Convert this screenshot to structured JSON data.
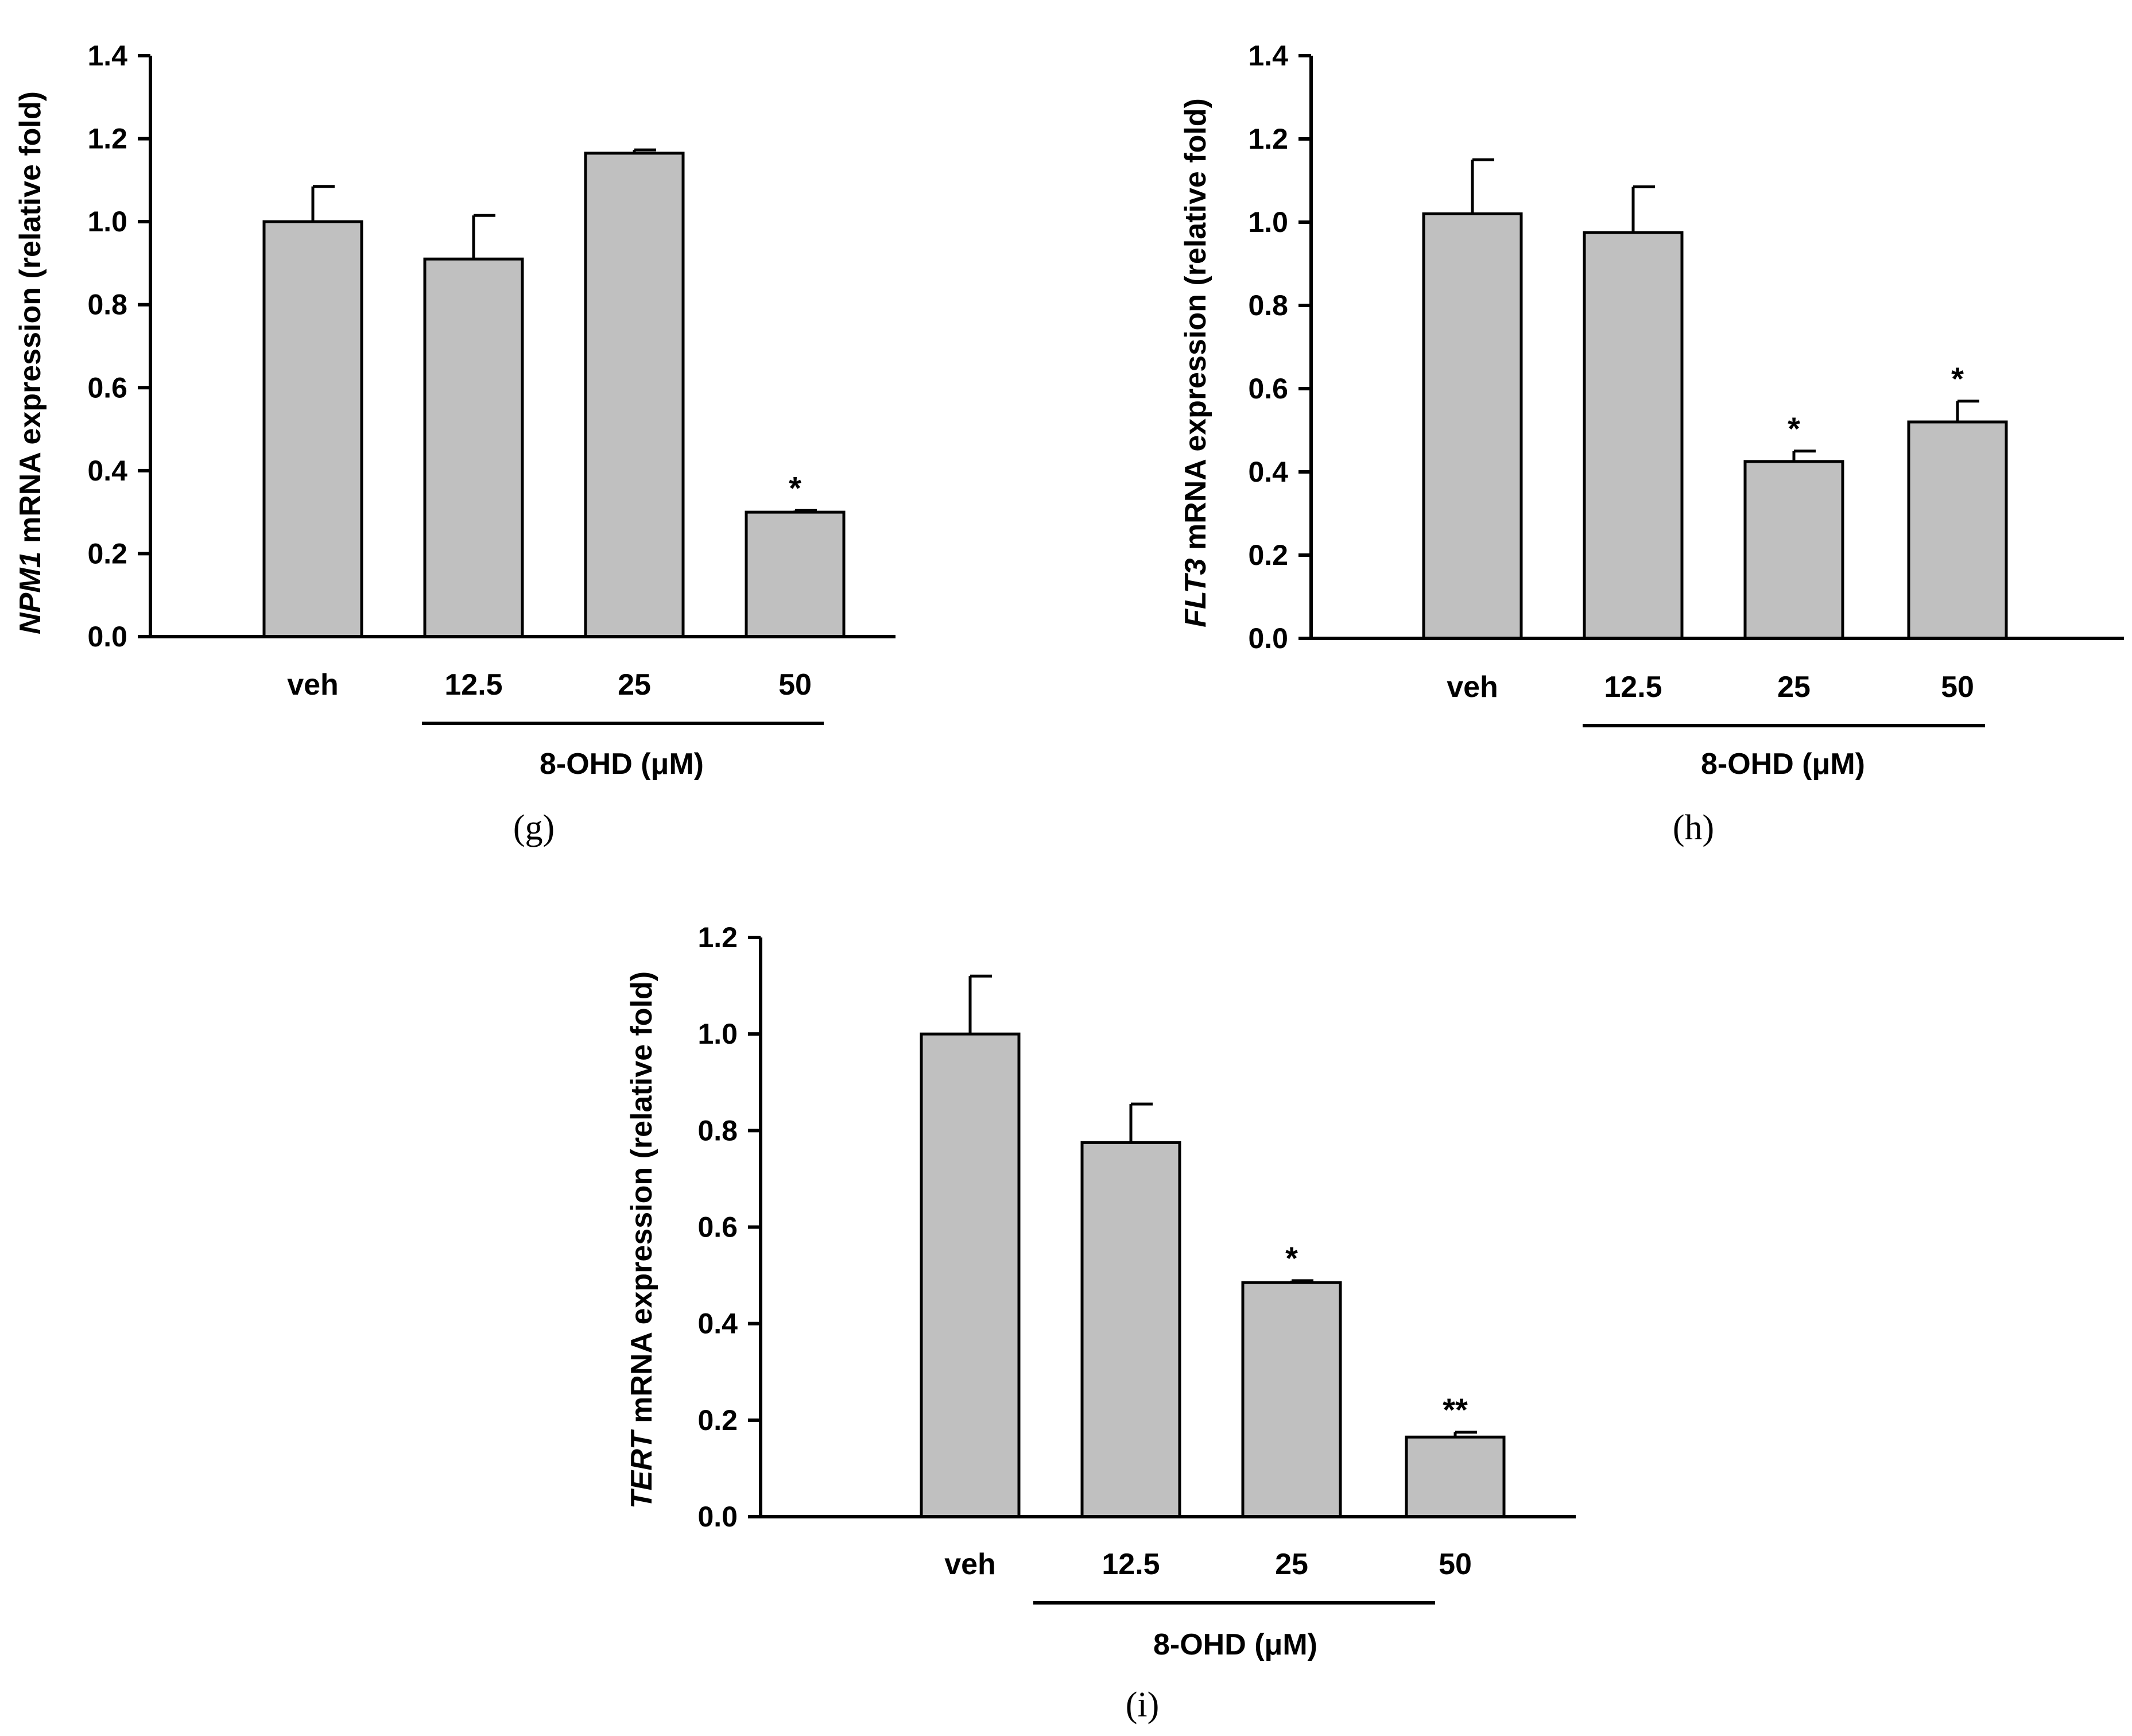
{
  "figure": {
    "panels": [
      {
        "id": "g",
        "panel_label": "(g)",
        "ylabel_gene": "NPM1",
        "ylabel_rest": " mRNA expression (relative fold)",
        "group_label": "8-OHD (μM)",
        "chart_data": {
          "type": "bar",
          "categories": [
            "veh",
            "12.5",
            "25",
            "50"
          ],
          "values": [
            1.0,
            0.91,
            1.165,
            0.3
          ],
          "errors": [
            0.085,
            0.105,
            0.008,
            0.004
          ],
          "significance": [
            "",
            "",
            "",
            "*"
          ],
          "ylabel": "NPM1 mRNA expression (relative fold)",
          "xlabel": "8-OHD (μM)",
          "ylim": [
            0,
            1.4
          ],
          "yticks": [
            0.0,
            0.2,
            0.4,
            0.6,
            0.8,
            1.0,
            1.2,
            1.4
          ],
          "ytick_labels": [
            "0.0",
            "0.2",
            "0.4",
            "0.6",
            "0.8",
            "1.0",
            "1.2",
            "1.4"
          ],
          "bar_color": "#c0c0c0"
        }
      },
      {
        "id": "h",
        "panel_label": "(h)",
        "ylabel_gene": "FLT3",
        "ylabel_rest": " mRNA expression (relative fold)",
        "group_label": "8-OHD (μM)",
        "chart_data": {
          "type": "bar",
          "categories": [
            "veh",
            "12.5",
            "25",
            "50"
          ],
          "values": [
            1.02,
            0.975,
            0.425,
            0.52
          ],
          "errors": [
            0.13,
            0.11,
            0.025,
            0.05
          ],
          "significance": [
            "",
            "",
            "*",
            "*"
          ],
          "ylabel": "FLT3 mRNA expression (relative fold)",
          "xlabel": "8-OHD (μM)",
          "ylim": [
            0,
            1.4
          ],
          "yticks": [
            0.0,
            0.2,
            0.4,
            0.6,
            0.8,
            1.0,
            1.2,
            1.4
          ],
          "ytick_labels": [
            "0.0",
            "0.2",
            "0.4",
            "0.6",
            "0.8",
            "1.0",
            "1.2",
            "1.4"
          ],
          "bar_color": "#c0c0c0"
        }
      },
      {
        "id": "i",
        "panel_label": "(i)",
        "ylabel_gene": "TERT",
        "ylabel_rest": " mRNA expression (relative fold)",
        "group_label": "8-OHD (μM)",
        "chart_data": {
          "type": "bar",
          "categories": [
            "veh",
            "12.5",
            "25",
            "50"
          ],
          "values": [
            1.0,
            0.775,
            0.485,
            0.165
          ],
          "errors": [
            0.12,
            0.08,
            0.004,
            0.01
          ],
          "significance": [
            "",
            "",
            "*",
            "**"
          ],
          "ylabel": "TERT mRNA expression (relative fold)",
          "xlabel": "8-OHD (μM)",
          "ylim": [
            0,
            1.2
          ],
          "yticks": [
            0.0,
            0.2,
            0.4,
            0.6,
            0.8,
            1.0,
            1.2
          ],
          "ytick_labels": [
            "0.0",
            "0.2",
            "0.4",
            "0.6",
            "0.8",
            "1.0",
            "1.2"
          ],
          "bar_color": "#c0c0c0"
        }
      }
    ]
  }
}
